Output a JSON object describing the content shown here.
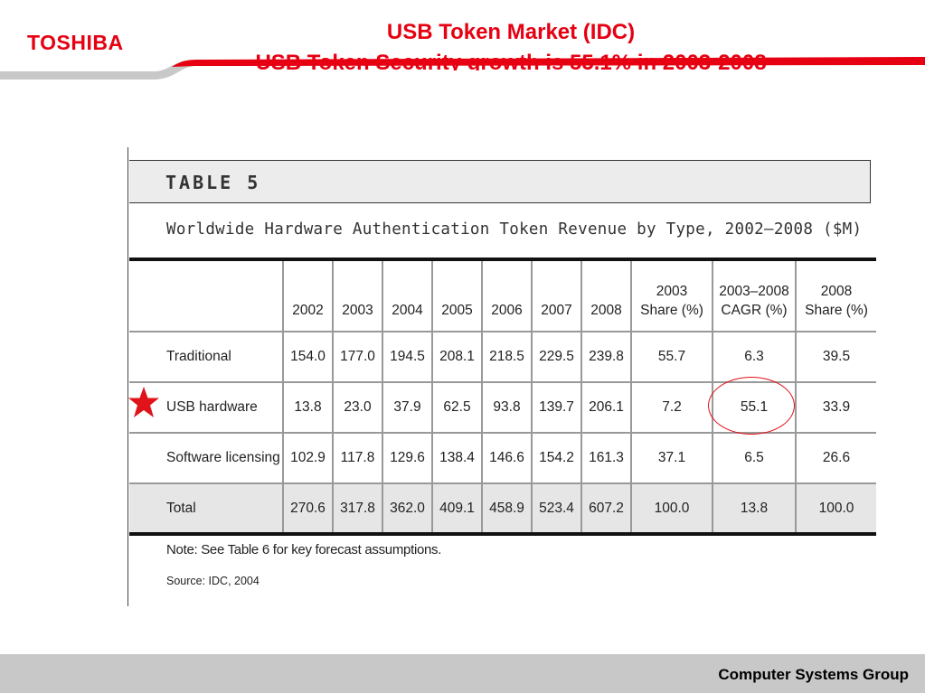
{
  "header": {
    "logo": "TOSHIBA",
    "title_line1": "USB Token Market (IDC)",
    "title_line2": "USB Token Security growth is 55.1% in 2003-2008"
  },
  "document": {
    "table_label": "TABLE 5",
    "subtitle": "Worldwide Hardware Authentication Token Revenue by Type, 2002–2008 ($M)",
    "columns": [
      "",
      "2002",
      "2003",
      "2004",
      "2005",
      "2006",
      "2007",
      "2008",
      "2003 Share (%)",
      "2003–2008 CAGR (%)",
      "2008 Share (%)"
    ],
    "column_lines": [
      [
        ""
      ],
      [
        "2002"
      ],
      [
        "2003"
      ],
      [
        "2004"
      ],
      [
        "2005"
      ],
      [
        "2006"
      ],
      [
        "2007"
      ],
      [
        "2008"
      ],
      [
        "2003",
        "Share (%)"
      ],
      [
        "2003–2008",
        "CAGR (%)"
      ],
      [
        "2008",
        "Share (%)"
      ]
    ],
    "rows": [
      [
        "Traditional",
        "154.0",
        "177.0",
        "194.5",
        "208.1",
        "218.5",
        "229.5",
        "239.8",
        "55.7",
        "6.3",
        "39.5"
      ],
      [
        "USB hardware",
        "13.8",
        "23.0",
        "37.9",
        "62.5",
        "93.8",
        "139.7",
        "206.1",
        "7.2",
        "55.1",
        "33.9"
      ],
      [
        "Software licensing",
        "102.9",
        "117.8",
        "129.6",
        "138.4",
        "146.6",
        "154.2",
        "161.3",
        "37.1",
        "6.5",
        "26.6"
      ],
      [
        "Total",
        "270.6",
        "317.8",
        "362.0",
        "409.1",
        "458.9",
        "523.4",
        "607.2",
        "100.0",
        "13.8",
        "100.0"
      ]
    ],
    "note": "Note: See Table 6 for key forecast assumptions.",
    "source": "Source: IDC, 2004"
  },
  "footer": {
    "text": "Computer Systems Group"
  },
  "colors": {
    "brand_red": "#e60012",
    "footer_gray": "#c8c8c8",
    "total_row_gray": "#e6e6e6"
  }
}
